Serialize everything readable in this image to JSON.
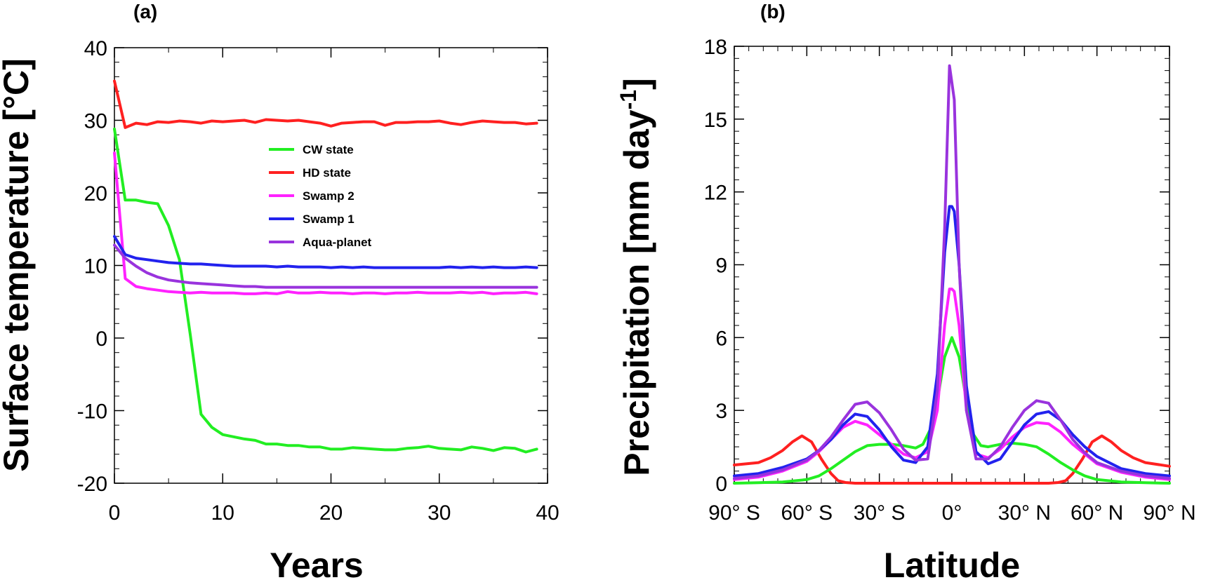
{
  "chart_data": [
    {
      "type": "line",
      "panel_label": "(a)",
      "xlabel": "Years",
      "ylabel": "Surface temperature [°C]",
      "xlim": [
        0,
        40
      ],
      "ylim": [
        -20,
        40
      ],
      "xticks": [
        0,
        10,
        20,
        30,
        40
      ],
      "yticks": [
        -20,
        -10,
        0,
        10,
        20,
        30,
        40
      ],
      "xtick_labels": [
        "0",
        "10",
        "20",
        "30",
        "40"
      ],
      "ytick_labels": [
        "-20",
        "-10",
        "0",
        "10",
        "20",
        "30",
        "40"
      ],
      "legend_position": "center",
      "x": [
        0,
        1,
        2,
        3,
        4,
        5,
        6,
        7,
        8,
        9,
        10,
        11,
        12,
        13,
        14,
        15,
        16,
        17,
        18,
        19,
        20,
        21,
        22,
        23,
        24,
        25,
        26,
        27,
        28,
        29,
        30,
        31,
        32,
        33,
        34,
        35,
        36,
        37,
        38,
        39
      ],
      "series": [
        {
          "name": "CW state",
          "color": "#22ee22",
          "values": [
            28.8,
            19.0,
            19.0,
            18.7,
            18.5,
            15.5,
            10.8,
            0.5,
            -10.5,
            -12.3,
            -13.3,
            -13.6,
            -13.9,
            -14.1,
            -14.6,
            -14.6,
            -14.8,
            -14.8,
            -15.0,
            -15.0,
            -15.3,
            -15.3,
            -15.1,
            -15.2,
            -15.3,
            -15.4,
            -15.4,
            -15.2,
            -15.1,
            -14.9,
            -15.2,
            -15.3,
            -15.4,
            -15.0,
            -15.2,
            -15.5,
            -15.1,
            -15.2,
            -15.7,
            -15.3
          ]
        },
        {
          "name": "HD state",
          "color": "#ff2020",
          "values": [
            35.4,
            29.0,
            29.6,
            29.4,
            29.8,
            29.7,
            29.9,
            29.8,
            29.6,
            29.9,
            29.8,
            29.9,
            30.0,
            29.7,
            30.1,
            30.0,
            29.9,
            30.0,
            29.8,
            29.6,
            29.2,
            29.6,
            29.7,
            29.8,
            29.8,
            29.3,
            29.7,
            29.7,
            29.8,
            29.8,
            29.9,
            29.6,
            29.4,
            29.7,
            29.9,
            29.8,
            29.7,
            29.7,
            29.5,
            29.6
          ]
        },
        {
          "name": "Swamp 2",
          "color": "#ff22ff",
          "values": [
            25.5,
            8.2,
            7.1,
            6.8,
            6.6,
            6.4,
            6.3,
            6.2,
            6.3,
            6.2,
            6.2,
            6.2,
            6.1,
            6.1,
            6.2,
            6.1,
            6.4,
            6.2,
            6.2,
            6.3,
            6.2,
            6.2,
            6.1,
            6.2,
            6.2,
            6.1,
            6.2,
            6.2,
            6.3,
            6.2,
            6.2,
            6.2,
            6.3,
            6.2,
            6.3,
            6.1,
            6.2,
            6.2,
            6.3,
            6.1
          ]
        },
        {
          "name": "Swamp 1",
          "color": "#2222ee",
          "values": [
            14.0,
            11.5,
            11.0,
            10.8,
            10.6,
            10.4,
            10.3,
            10.2,
            10.2,
            10.1,
            10.0,
            9.9,
            9.9,
            9.9,
            9.9,
            9.8,
            9.9,
            9.8,
            9.8,
            9.8,
            9.7,
            9.8,
            9.7,
            9.8,
            9.7,
            9.7,
            9.7,
            9.7,
            9.7,
            9.7,
            9.7,
            9.8,
            9.7,
            9.8,
            9.7,
            9.8,
            9.7,
            9.7,
            9.8,
            9.7
          ]
        },
        {
          "name": "Aqua-planet",
          "color": "#9933dd",
          "values": [
            12.8,
            11.0,
            9.9,
            9.0,
            8.4,
            8.0,
            7.8,
            7.6,
            7.5,
            7.4,
            7.3,
            7.2,
            7.1,
            7.1,
            7.0,
            7.0,
            7.0,
            7.0,
            7.0,
            7.0,
            7.0,
            7.0,
            7.0,
            7.0,
            7.0,
            7.0,
            7.0,
            7.0,
            7.0,
            7.0,
            7.0,
            7.0,
            7.0,
            7.0,
            7.0,
            7.0,
            7.0,
            7.0,
            7.0,
            7.0
          ]
        }
      ]
    },
    {
      "type": "line",
      "panel_label": "(b)",
      "xlabel": "Latitude",
      "ylabel": "Precipitation [mm day",
      "ylabel_superscript": "-1",
      "ylabel_close": "]",
      "xlim": [
        -90,
        90
      ],
      "ylim": [
        0,
        18
      ],
      "xticks": [
        -90,
        -60,
        -30,
        0,
        30,
        60,
        90
      ],
      "yticks": [
        0,
        3,
        6,
        9,
        12,
        15,
        18
      ],
      "xtick_labels": [
        "90° S",
        "60° S",
        "30° S",
        "0°",
        "30° N",
        "60° N",
        "90° N"
      ],
      "ytick_labels": [
        "0",
        "3",
        "6",
        "9",
        "12",
        "15",
        "18"
      ],
      "series": [
        {
          "name": "HD state",
          "color": "#ff2020",
          "x": [
            -90,
            -80,
            -75,
            -70,
            -66,
            -62,
            -58,
            -54,
            -50,
            -47,
            -44,
            -40,
            -30,
            -20,
            -10,
            0,
            10,
            20,
            30,
            40,
            44,
            47,
            50,
            54,
            58,
            62,
            66,
            70,
            75,
            80,
            90
          ],
          "values": [
            0.75,
            0.85,
            1.05,
            1.35,
            1.7,
            1.95,
            1.7,
            1.0,
            0.4,
            0.1,
            0.03,
            0,
            0,
            0,
            0,
            0,
            0,
            0,
            0,
            0,
            0.03,
            0.1,
            0.4,
            1.0,
            1.7,
            1.95,
            1.7,
            1.35,
            1.05,
            0.85,
            0.7
          ]
        },
        {
          "name": "CW state",
          "color": "#22ee22",
          "x": [
            -90,
            -80,
            -70,
            -60,
            -55,
            -50,
            -45,
            -40,
            -35,
            -30,
            -25,
            -20,
            -15,
            -12,
            -9,
            -6,
            -3,
            0,
            3,
            6,
            9,
            12,
            15,
            20,
            25,
            30,
            35,
            40,
            45,
            50,
            55,
            60,
            70,
            80,
            90
          ],
          "values": [
            0,
            0.02,
            0.05,
            0.15,
            0.3,
            0.6,
            0.95,
            1.3,
            1.55,
            1.6,
            1.6,
            1.55,
            1.45,
            1.6,
            2.2,
            3.4,
            5.2,
            6.0,
            5.2,
            3.4,
            2.0,
            1.55,
            1.5,
            1.6,
            1.65,
            1.6,
            1.5,
            1.2,
            0.85,
            0.55,
            0.3,
            0.15,
            0.05,
            0.02,
            0
          ]
        },
        {
          "name": "Swamp 2",
          "color": "#ff22ff",
          "x": [
            -90,
            -80,
            -70,
            -60,
            -55,
            -50,
            -45,
            -40,
            -35,
            -30,
            -25,
            -20,
            -15,
            -10,
            -6,
            -3,
            -1,
            0,
            1,
            3,
            6,
            10,
            15,
            20,
            25,
            30,
            35,
            40,
            45,
            50,
            55,
            60,
            70,
            80,
            90
          ],
          "values": [
            0.15,
            0.25,
            0.5,
            0.9,
            1.3,
            1.8,
            2.3,
            2.55,
            2.4,
            2.0,
            1.6,
            1.2,
            1.05,
            1.3,
            3.0,
            6.5,
            8.0,
            8.0,
            7.9,
            6.5,
            3.0,
            1.2,
            1.05,
            1.4,
            1.9,
            2.3,
            2.5,
            2.45,
            2.1,
            1.6,
            1.2,
            0.8,
            0.45,
            0.25,
            0.15
          ]
        },
        {
          "name": "Swamp 1",
          "color": "#2222ee",
          "x": [
            -90,
            -80,
            -70,
            -60,
            -55,
            -50,
            -45,
            -40,
            -35,
            -30,
            -25,
            -20,
            -15,
            -10,
            -6,
            -3,
            -1,
            0,
            1,
            3,
            6,
            10,
            15,
            20,
            25,
            30,
            35,
            40,
            45,
            50,
            55,
            60,
            70,
            80,
            90
          ],
          "values": [
            0.3,
            0.4,
            0.65,
            1.0,
            1.35,
            1.8,
            2.4,
            2.85,
            2.75,
            2.2,
            1.5,
            0.95,
            0.85,
            1.5,
            4.5,
            9.5,
            11.4,
            11.4,
            11.2,
            9.0,
            4.0,
            1.3,
            0.8,
            1.0,
            1.7,
            2.4,
            2.85,
            2.95,
            2.6,
            2.0,
            1.5,
            1.1,
            0.6,
            0.4,
            0.3
          ]
        },
        {
          "name": "Aqua-planet",
          "color": "#9933dd",
          "x": [
            -90,
            -80,
            -70,
            -60,
            -55,
            -50,
            -45,
            -40,
            -35,
            -30,
            -25,
            -20,
            -15,
            -10,
            -6,
            -3,
            -1,
            0,
            1,
            3,
            6,
            10,
            15,
            20,
            25,
            30,
            35,
            40,
            45,
            50,
            55,
            60,
            70,
            80,
            90
          ],
          "values": [
            0.2,
            0.3,
            0.55,
            0.95,
            1.35,
            1.9,
            2.6,
            3.25,
            3.35,
            2.9,
            2.2,
            1.4,
            0.95,
            1.0,
            3.8,
            10.5,
            17.2,
            16.5,
            15.8,
            9.0,
            3.0,
            1.0,
            1.0,
            1.5,
            2.3,
            3.0,
            3.4,
            3.3,
            2.6,
            1.8,
            1.25,
            0.85,
            0.5,
            0.3,
            0.2
          ]
        }
      ]
    }
  ]
}
